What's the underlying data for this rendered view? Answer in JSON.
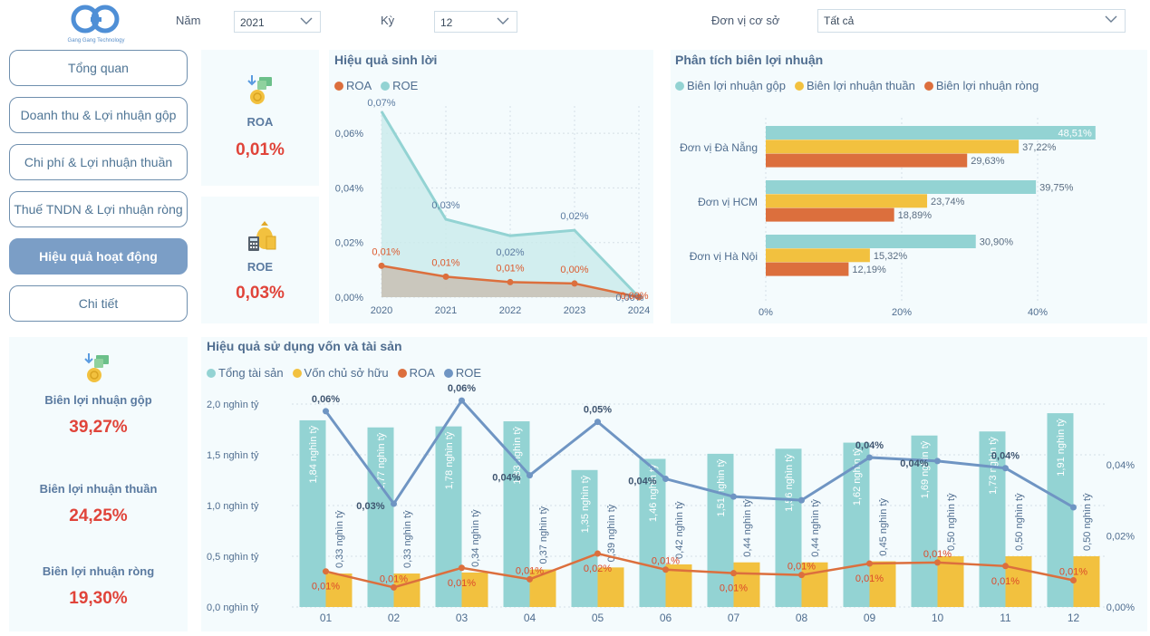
{
  "logo": {
    "brand_text": "Gang Gang Technology"
  },
  "filters": {
    "year_label": "Năm",
    "year_value": "2021",
    "period_label": "Kỳ",
    "period_value": "12",
    "unit_label": "Đơn vị cơ sở",
    "unit_value": "Tất cả"
  },
  "nav": {
    "items": [
      {
        "label": "Tổng quan"
      },
      {
        "label": "Doanh thu & Lợi nhuận gộp"
      },
      {
        "label": "Chi phí & Lợi nhuận thuần"
      },
      {
        "label": "Thuế TNDN & Lợi nhuận ròng"
      },
      {
        "label": "Hiệu quả hoạt động"
      },
      {
        "label": "Chi tiết"
      }
    ],
    "active_index": 4
  },
  "kpis": {
    "roa": {
      "label": "ROA",
      "value": "0,01%"
    },
    "roe": {
      "label": "ROE",
      "value": "0,03%"
    },
    "gross_margin": {
      "label": "Biên lợi nhuận gộp",
      "value": "39,27%"
    },
    "net_operating_margin": {
      "label": "Biên lợi nhuận thuần",
      "value": "24,25%"
    },
    "net_margin": {
      "label": "Biên lợi nhuận ròng",
      "value": "19,30%"
    }
  },
  "colors": {
    "teal": "#93d3d3",
    "yellow": "#f2c13f",
    "orange": "#dc6f3d",
    "blue": "#6f95c3",
    "red": "#e0443a"
  },
  "chart_data": [
    {
      "type": "area",
      "title": "Hiệu quả sinh lời",
      "x": [
        "2020",
        "2021",
        "2022",
        "2023",
        "2024"
      ],
      "series": [
        {
          "name": "ROA",
          "values": [
            0.0115,
            0.0075,
            0.0055,
            0.005,
            0.0
          ],
          "labels": [
            "0,01%",
            "0,01%",
            "0,01%",
            "0,00%",
            "0,00%"
          ]
        },
        {
          "name": "ROE",
          "values": [
            0.068,
            0.0285,
            0.0225,
            0.0245,
            0.0
          ],
          "labels": [
            "0,07%",
            "0,03%",
            "0,02%",
            "0,02%",
            "0,00%"
          ]
        }
      ],
      "y_ticks": [
        "0,00%",
        "0,02%",
        "0,04%",
        "0,06%"
      ],
      "ylim": [
        0,
        0.07
      ]
    },
    {
      "type": "bar",
      "orientation": "horizontal",
      "title": "Phân tích biên lợi nhuận",
      "categories": [
        "Đơn vị Đà Nẵng",
        "Đơn vị HCM",
        "Đơn vị Hà Nội"
      ],
      "series": [
        {
          "name": "Biên lợi nhuận gộp",
          "values": [
            48.51,
            39.75,
            30.9
          ],
          "labels": [
            "48,51%",
            "39,75%",
            "30,90%"
          ]
        },
        {
          "name": "Biên lợi nhuận thuần",
          "values": [
            37.22,
            23.74,
            15.32
          ],
          "labels": [
            "37,22%",
            "23,74%",
            "15,32%"
          ]
        },
        {
          "name": "Biên lợi nhuận ròng",
          "values": [
            29.63,
            18.89,
            12.19
          ],
          "labels": [
            "29,63%",
            "18,89%",
            "12,19%"
          ]
        }
      ],
      "x_ticks": [
        "0%",
        "20%",
        "40%"
      ],
      "xlim": [
        0,
        50
      ]
    },
    {
      "type": "bar",
      "title": "Hiệu quả sử dụng vốn và tài sản",
      "categories": [
        "01",
        "02",
        "03",
        "04",
        "05",
        "06",
        "07",
        "08",
        "09",
        "10",
        "11",
        "12"
      ],
      "series": [
        {
          "name": "Tổng tài sản",
          "values": [
            1.84,
            1.77,
            1.78,
            1.83,
            1.35,
            1.46,
            1.51,
            1.56,
            1.62,
            1.69,
            1.73,
            1.91
          ],
          "labels": [
            "1,84 nghìn tỷ",
            "1,77 nghìn tỷ",
            "1,78 nghìn tỷ",
            "1,83 nghìn tỷ",
            "1,35 nghìn tỷ",
            "1,46 nghìn tỷ",
            "1,51 nghìn tỷ",
            "1,56 nghìn tỷ",
            "1,62 nghìn tỷ",
            "1,69 nghìn tỷ",
            "1,73 nghìn tỷ",
            "1,91 nghìn tỷ"
          ]
        },
        {
          "name": "Vốn chủ sở hữu",
          "values": [
            0.33,
            0.33,
            0.34,
            0.37,
            0.39,
            0.42,
            0.44,
            0.44,
            0.45,
            0.5,
            0.5,
            0.5
          ],
          "labels": [
            "0,33 nghìn tỷ",
            "0,33 nghìn tỷ",
            "0,34 nghìn tỷ",
            "0,37 nghìn tỷ",
            "0,39 nghìn tỷ",
            "0,42 nghìn tỷ",
            "0,44 nghìn tỷ",
            "0,44 nghìn tỷ",
            "0,45 nghìn tỷ",
            "0,50 nghìn tỷ",
            "0,50 nghìn tỷ",
            "0,50 nghìn tỷ"
          ]
        },
        {
          "name": "ROA",
          "axis": "right",
          "values": [
            0.01,
            0.0055,
            0.011,
            0.0078,
            0.015,
            0.0105,
            0.0095,
            0.009,
            0.0122,
            0.0125,
            0.0115,
            0.0075
          ],
          "labels": [
            "0,01%",
            "0,01%",
            "0,01%",
            "0,01%",
            "0,02%",
            "0,01%",
            "0,01%",
            "0,01%",
            "0,01%",
            "0,01%",
            "0,01%",
            "0,01%"
          ]
        },
        {
          "name": "ROE",
          "axis": "right",
          "values": [
            0.055,
            0.029,
            0.058,
            0.037,
            0.052,
            0.036,
            0.031,
            0.03,
            0.042,
            0.041,
            0.039,
            0.028
          ],
          "labels": [
            "0,06%",
            "0,03%",
            "0,06%",
            "0,04%",
            "0,05%",
            "0,04%",
            "",
            "",
            "0,04%",
            "0,04%",
            "0,04%",
            ""
          ]
        }
      ],
      "y_ticks": [
        "0,0 nghìn tỷ",
        "0,5 nghìn tỷ",
        "1,0 nghìn tỷ",
        "1,5 nghìn tỷ",
        "2,0 nghìn tỷ"
      ],
      "ylim": [
        0,
        2.0
      ],
      "y2_ticks": [
        "0,00%",
        "0,02%",
        "0,04%"
      ],
      "y2lim": [
        0,
        0.057
      ]
    }
  ]
}
